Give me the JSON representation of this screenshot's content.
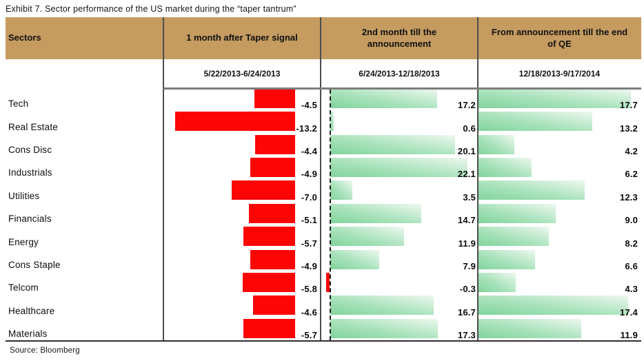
{
  "title": "Exhibit 7. Sector performance of the US market during the “taper tantrum”",
  "source": "Source: Bloomberg",
  "columns": {
    "sectors_header": "Sectors",
    "panels": [
      {
        "header": "1 month after Taper signal",
        "period": "5/22/2013-6/24/2013"
      },
      {
        "header": "2nd month till the announcement",
        "period": "6/24/2013-12/18/2013"
      },
      {
        "header": "From announcement till the end of QE",
        "period": "12/18/2013-9/17/2014"
      }
    ]
  },
  "colors": {
    "header_bg": "#c59b60",
    "bar_negative": "#fb0505",
    "bar_positive_start": "#82d39c",
    "bar_positive_end": "#eef8f0",
    "divider": "#4d4d4d"
  },
  "chart_data": {
    "type": "bar",
    "orientation": "horizontal",
    "title": "Exhibit 7. Sector performance of the US market during the “taper tantrum”",
    "categories": [
      "Tech",
      "Real Estate",
      "Cons Disc",
      "Industrials",
      "Utilities",
      "Financials",
      "Energy",
      "Cons Staple",
      "Telcom",
      "Healthcare",
      "Materials"
    ],
    "series": [
      {
        "name": "1 month after Taper signal (5/22/2013-6/24/2013)",
        "values": [
          -4.5,
          -13.2,
          -4.4,
          -4.9,
          -7.0,
          -5.1,
          -5.7,
          -4.9,
          -5.8,
          -4.6,
          -5.7
        ]
      },
      {
        "name": "2nd month till the announcement (6/24/2013-12/18/2013)",
        "values": [
          17.2,
          0.6,
          20.1,
          22.1,
          3.5,
          14.7,
          11.9,
          7.9,
          -0.3,
          16.7,
          17.3
        ]
      },
      {
        "name": "From announcement till the end of QE (12/18/2013-9/17/2014)",
        "values": [
          17.7,
          13.2,
          4.2,
          6.2,
          12.3,
          9.0,
          8.2,
          6.6,
          4.3,
          17.4,
          11.9
        ]
      }
    ],
    "value_labels": "shown, one decimal",
    "negative_color": "red",
    "positive_color": "green gradient",
    "legend_position": "none",
    "grid": false,
    "source": "Bloomberg"
  }
}
